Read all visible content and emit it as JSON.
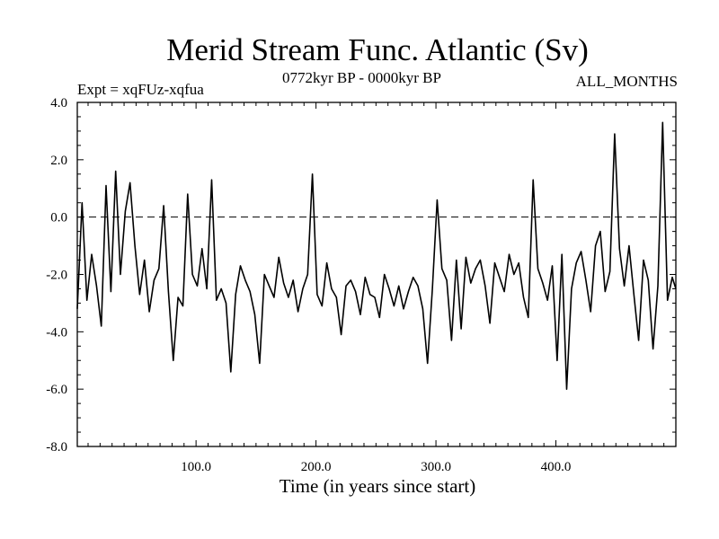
{
  "chart_data": {
    "type": "line",
    "title": "Merid Stream Func. Atlantic (Sv)",
    "subtitle_left": "Expt = xqFUz-xqfua",
    "subtitle_center": "0772kyr BP - 0000kyr BP",
    "subtitle_right": "ALL_MONTHS",
    "xlabel": "Time (in years since start)",
    "ylabel": "",
    "xlim": [
      1,
      500
    ],
    "ylim": [
      -8.0,
      4.0
    ],
    "x_ticks": [
      100,
      200,
      300,
      400
    ],
    "x_tick_labels": [
      "100.0",
      "200.0",
      "300.0",
      "400.0"
    ],
    "y_ticks": [
      4.0,
      2.0,
      0.0,
      -2.0,
      -4.0,
      -6.0,
      -8.0
    ],
    "y_tick_labels": [
      "4.0",
      "2.0",
      "0.0",
      "-2.0",
      "-4.0",
      "-6.0",
      "-8.0"
    ],
    "reference_line": {
      "y": 0.0,
      "style": "dashed"
    },
    "series": [
      {
        "name": "Merid Stream Func. Atlantic",
        "x": [
          1,
          5,
          9,
          13,
          17,
          21,
          25,
          29,
          33,
          37,
          41,
          45,
          49,
          53,
          57,
          61,
          65,
          69,
          73,
          77,
          81,
          85,
          89,
          93,
          97,
          101,
          105,
          109,
          113,
          117,
          121,
          125,
          129,
          133,
          137,
          141,
          145,
          149,
          153,
          157,
          161,
          165,
          169,
          173,
          177,
          181,
          185,
          189,
          193,
          197,
          201,
          205,
          209,
          213,
          217,
          221,
          225,
          229,
          233,
          237,
          241,
          245,
          249,
          253,
          257,
          261,
          265,
          269,
          273,
          277,
          281,
          285,
          289,
          293,
          297,
          301,
          305,
          309,
          313,
          317,
          321,
          325,
          329,
          333,
          337,
          341,
          345,
          349,
          353,
          357,
          361,
          365,
          369,
          373,
          377,
          381,
          385,
          389,
          393,
          397,
          401,
          405,
          409,
          413,
          417,
          421,
          425,
          429,
          433,
          437,
          441,
          445,
          449,
          453,
          457,
          461,
          465,
          469,
          473,
          477,
          481,
          485,
          489,
          493,
          497,
          500
        ],
        "values": [
          -3.2,
          0.5,
          -2.9,
          -1.3,
          -2.4,
          -3.8,
          1.1,
          -2.6,
          1.6,
          -2.0,
          0.2,
          1.2,
          -1.0,
          -2.7,
          -1.5,
          -3.3,
          -2.2,
          -1.8,
          0.4,
          -2.6,
          -5.0,
          -2.8,
          -3.1,
          0.8,
          -2.0,
          -2.4,
          -1.1,
          -2.5,
          1.3,
          -2.9,
          -2.5,
          -3.0,
          -5.4,
          -2.7,
          -1.7,
          -2.2,
          -2.6,
          -3.4,
          -5.1,
          -2.0,
          -2.4,
          -2.8,
          -1.4,
          -2.3,
          -2.8,
          -2.2,
          -3.3,
          -2.5,
          -2.0,
          1.5,
          -2.7,
          -3.1,
          -1.6,
          -2.5,
          -2.8,
          -4.1,
          -2.4,
          -2.2,
          -2.6,
          -3.4,
          -2.1,
          -2.7,
          -2.8,
          -3.5,
          -2.0,
          -2.5,
          -3.1,
          -2.4,
          -3.2,
          -2.6,
          -2.1,
          -2.4,
          -3.2,
          -5.1,
          -2.5,
          0.6,
          -1.8,
          -2.2,
          -4.3,
          -1.5,
          -3.9,
          -1.4,
          -2.3,
          -1.8,
          -1.5,
          -2.4,
          -3.7,
          -1.6,
          -2.1,
          -2.6,
          -1.3,
          -2.0,
          -1.6,
          -2.8,
          -3.5,
          1.3,
          -1.8,
          -2.3,
          -2.9,
          -1.7,
          -5.0,
          -1.3,
          -6.0,
          -2.5,
          -1.6,
          -1.2,
          -2.2,
          -3.3,
          -1.0,
          -0.5,
          -2.6,
          -1.9,
          2.9,
          -1.1,
          -2.4,
          -1.0,
          -2.7,
          -4.3,
          -1.5,
          -2.2,
          -4.6,
          -2.4,
          3.3,
          -2.9,
          -2.1,
          -2.5
        ]
      }
    ]
  }
}
